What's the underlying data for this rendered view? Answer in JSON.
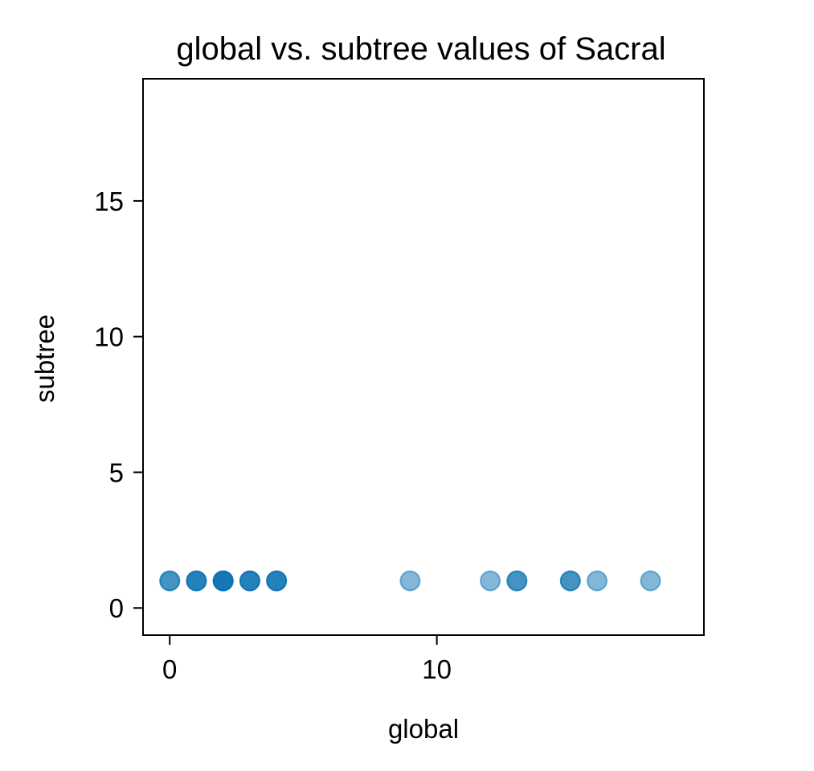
{
  "chart_data": {
    "type": "scatter",
    "title": "global vs. subtree values of Sacral",
    "xlabel": "global",
    "ylabel": "subtree",
    "xlim": [
      -1,
      20
    ],
    "ylim": [
      -1,
      19.5
    ],
    "xticks": [
      0,
      10
    ],
    "yticks": [
      0,
      5,
      10,
      15
    ],
    "grid": false,
    "marker_color": "#0570b0",
    "points": [
      {
        "x": 0,
        "y": 1
      },
      {
        "x": 0,
        "y": 1
      },
      {
        "x": 1,
        "y": 1
      },
      {
        "x": 1,
        "y": 1
      },
      {
        "x": 1,
        "y": 1
      },
      {
        "x": 2,
        "y": 1
      },
      {
        "x": 2,
        "y": 1
      },
      {
        "x": 2,
        "y": 1
      },
      {
        "x": 2,
        "y": 1
      },
      {
        "x": 3,
        "y": 1
      },
      {
        "x": 3,
        "y": 1
      },
      {
        "x": 3,
        "y": 1
      },
      {
        "x": 4,
        "y": 1
      },
      {
        "x": 4,
        "y": 1
      },
      {
        "x": 4,
        "y": 1
      },
      {
        "x": 9,
        "y": 1
      },
      {
        "x": 12,
        "y": 1
      },
      {
        "x": 13,
        "y": 1
      },
      {
        "x": 13,
        "y": 1
      },
      {
        "x": 15,
        "y": 1
      },
      {
        "x": 15,
        "y": 1
      },
      {
        "x": 16,
        "y": 1
      },
      {
        "x": 18,
        "y": 1
      }
    ]
  }
}
